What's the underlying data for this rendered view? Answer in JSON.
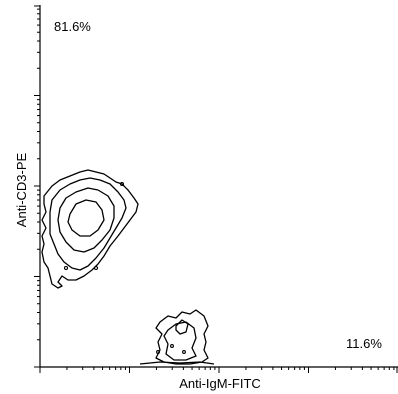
{
  "chart_data": {
    "type": "contour",
    "xlabel": "Anti-IgM-FITC",
    "ylabel": "Anti-CD3-PE",
    "xscale": "log",
    "yscale": "log",
    "xlim": [
      1,
      10000
    ],
    "ylim": [
      1,
      10000
    ],
    "grid": false,
    "quadrant_labels": [
      {
        "position": "top-left",
        "text": "81.6%"
      },
      {
        "position": "bottom-right",
        "text": "11.6%"
      }
    ],
    "populations": [
      {
        "name": "",
        "center": [
          3,
          200
        ],
        "percent": "81.6%"
      },
      {
        "name": "",
        "center": [
          60,
          2
        ],
        "percent": "11.6%"
      }
    ]
  }
}
